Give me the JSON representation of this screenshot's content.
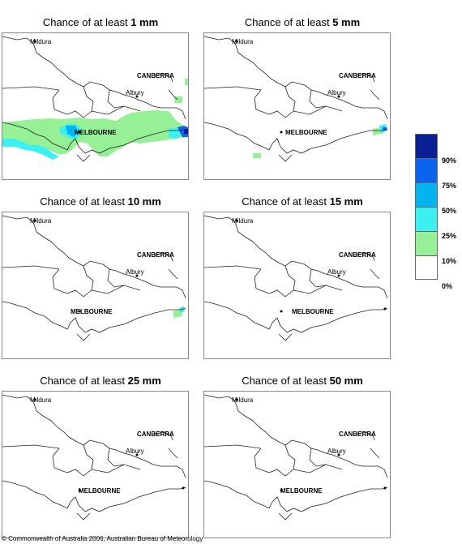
{
  "panels": [
    {
      "prefix": "Chance of at least ",
      "amount": "1 mm"
    },
    {
      "prefix": "Chance of at least ",
      "amount": "5 mm"
    },
    {
      "prefix": "Chance of at least ",
      "amount": "10 mm"
    },
    {
      "prefix": "Chance of at least ",
      "amount": "15 mm"
    },
    {
      "prefix": "Chance of at least ",
      "amount": "25 mm"
    },
    {
      "prefix": "Chance of at least ",
      "amount": "50 mm"
    }
  ],
  "places": {
    "mildura": "Mildura",
    "canberra": "CANBERRA",
    "albury": "Albury",
    "melbourne": "MELBOURNE"
  },
  "legend": {
    "labels": [
      "90%",
      "75%",
      "50%",
      "25%",
      "10%",
      "0%"
    ],
    "colors": [
      "#0a1e96",
      "#0a64f0",
      "#00b4f0",
      "#3cf0f0",
      "#96f096",
      "#ffffff"
    ]
  },
  "copyright": "© Commonwealth of Australia 2006, Australian Bureau of Meteorology"
}
